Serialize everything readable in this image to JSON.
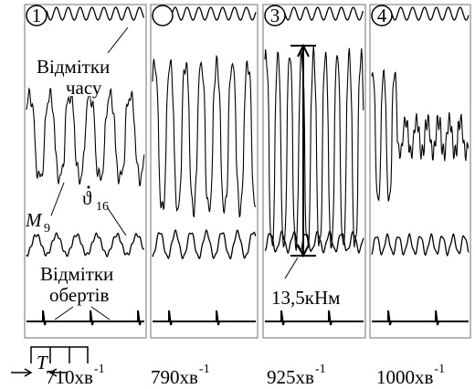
{
  "panels": [
    {
      "number": "1",
      "speed": "710хв",
      "speed_exp": "-1"
    },
    {
      "speed": "790хв",
      "speed_exp": "-1"
    },
    {
      "number": "3",
      "speed": "925хв",
      "speed_exp": "-1"
    },
    {
      "number": "4",
      "speed": "1000хв",
      "speed_exp": "-1"
    }
  ],
  "labels": {
    "time_marks": [
      "Відмітки",
      "часу"
    ],
    "rev_marks": [
      "Відмітки",
      "обертів"
    ],
    "torque": {
      "symbol": "M",
      "sub": "9"
    },
    "angle": {
      "symbol": "ϑ",
      "sub": "16"
    },
    "scale": "13,5кНм",
    "period": "T"
  }
}
